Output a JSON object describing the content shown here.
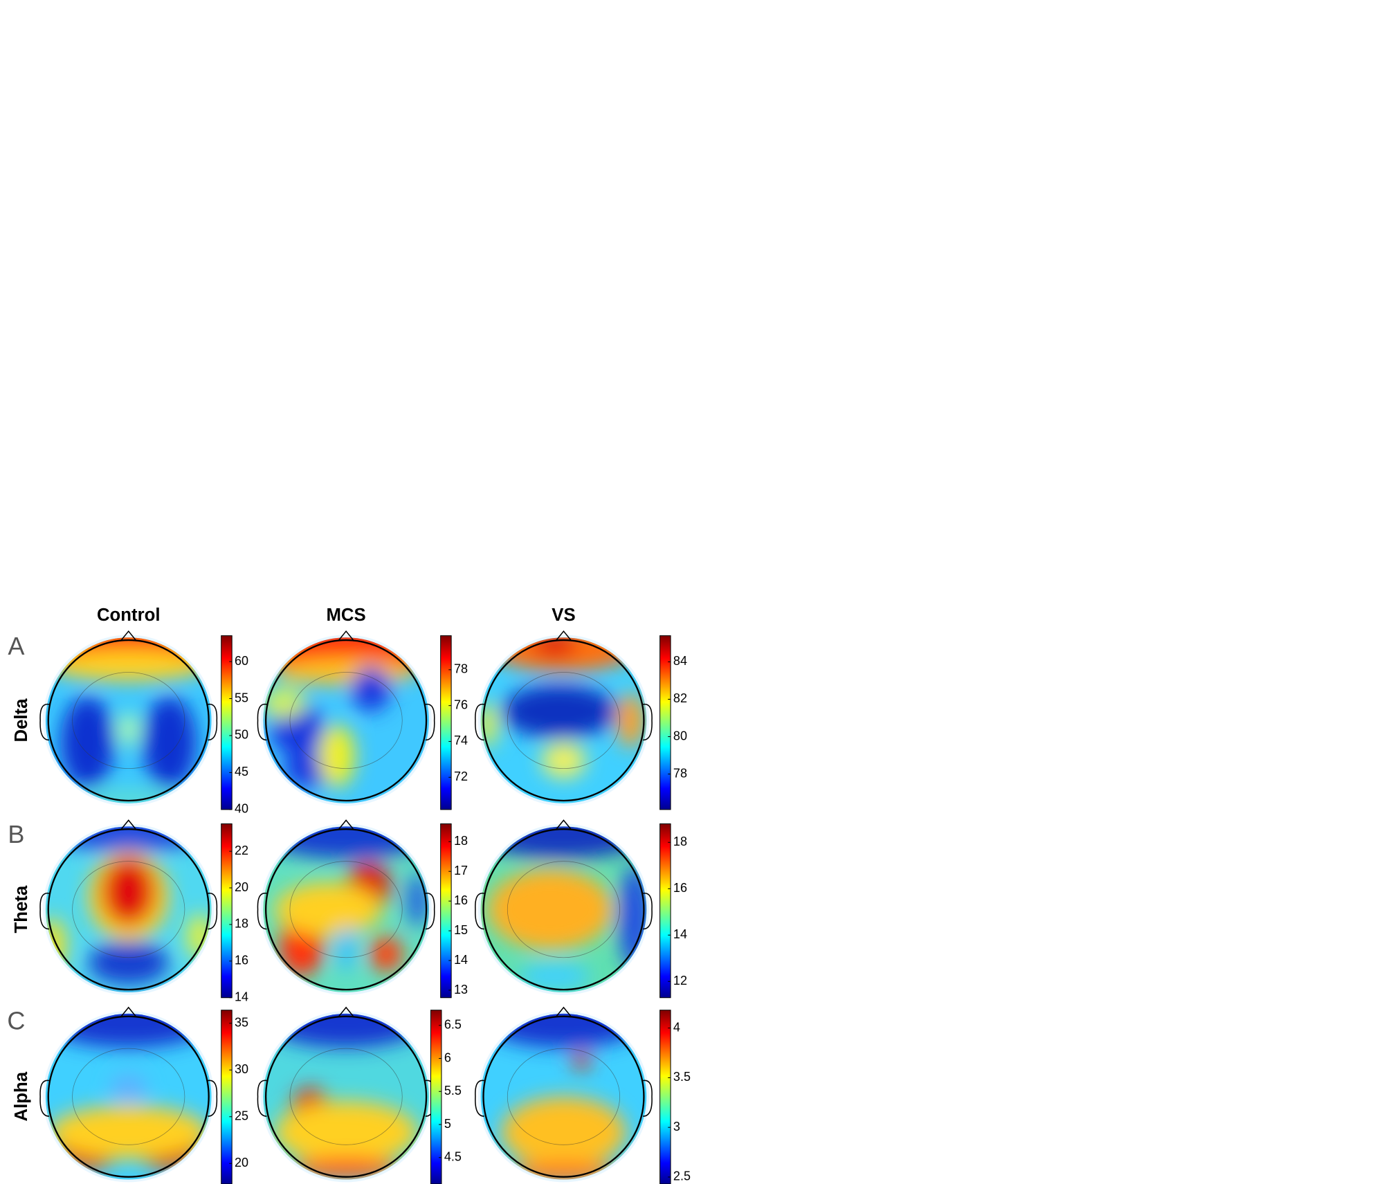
{
  "figure": {
    "columns": [
      "Control",
      "MCS",
      "VS"
    ],
    "rows": [
      {
        "letter": "A",
        "label": "Delta",
        "colorbars": [
          {
            "lim": [
              40,
              63.5
            ],
            "ticks": [
              40,
              45,
              50,
              55,
              60
            ]
          },
          {
            "lim": [
              70.2,
              79.9
            ],
            "ticks": [
              72,
              74,
              76,
              78
            ]
          },
          {
            "lim": [
              76.1,
              85.4
            ],
            "ticks": [
              78,
              80,
              82,
              84
            ]
          }
        ]
      },
      {
        "letter": "B",
        "label": "Theta",
        "colorbars": [
          {
            "lim": [
              14,
              23.5
            ],
            "ticks": [
              14,
              16,
              18,
              20,
              22
            ]
          },
          {
            "lim": [
              12.75,
              18.6
            ],
            "ticks": [
              13,
              14,
              15,
              16,
              17,
              18
            ]
          },
          {
            "lim": [
              11.3,
              18.8
            ],
            "ticks": [
              12,
              14,
              16,
              18
            ]
          }
        ]
      },
      {
        "letter": "C",
        "label": "Alpha",
        "colorbars": [
          {
            "lim": [
              17.8,
              36.4
            ],
            "ticks": [
              20,
              25,
              30,
              35
            ]
          },
          {
            "lim": [
              4.1,
              6.73
            ],
            "ticks": [
              4.5,
              5,
              5.5,
              6,
              6.5
            ]
          },
          {
            "lim": [
              2.43,
              4.18
            ],
            "ticks": [
              2.5,
              3,
              3.5,
              4
            ]
          }
        ]
      }
    ]
  }
}
